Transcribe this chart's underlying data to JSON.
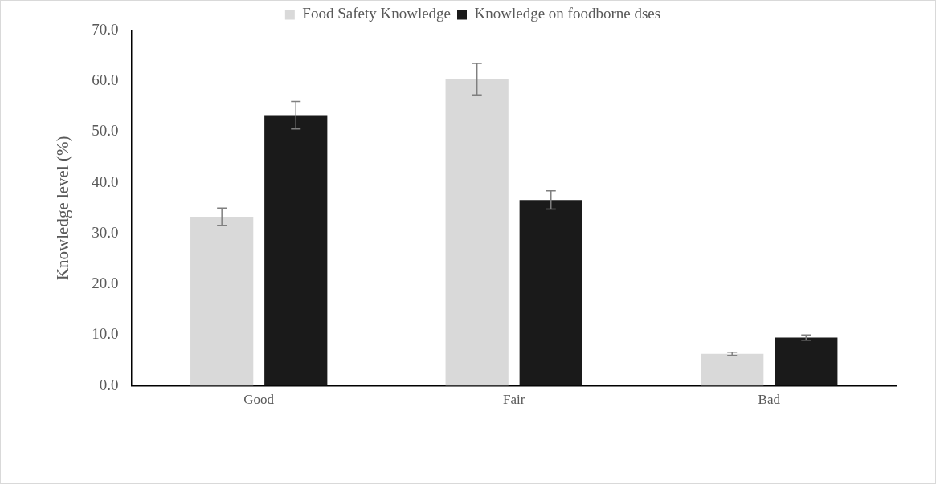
{
  "chart_data": {
    "type": "bar",
    "ylabel": "Knowledge level (%)",
    "categories": [
      "Good",
      "Fair",
      "Bad"
    ],
    "series": [
      {
        "name": "Food Safety Knowledge",
        "color": "#d9d9d9",
        "values": [
          33.3,
          60.4,
          6.3
        ],
        "errors": [
          1.7,
          3.1,
          0.3
        ]
      },
      {
        "name": "Knowledge on foodborne dses",
        "color": "#1a1a1a",
        "values": [
          53.3,
          36.6,
          9.5
        ],
        "errors": [
          2.7,
          1.8,
          0.5
        ]
      }
    ],
    "ylim": [
      0,
      70
    ],
    "yticks": [
      {
        "value": 0,
        "label": "0.0"
      },
      {
        "value": 10,
        "label": "10.0"
      },
      {
        "value": 20,
        "label": "20.0"
      },
      {
        "value": 30,
        "label": "30.0"
      },
      {
        "value": 40,
        "label": "40.0"
      },
      {
        "value": 50,
        "label": "50.0"
      },
      {
        "value": 60,
        "label": "60.0"
      },
      {
        "value": 70,
        "label": "70.0"
      }
    ],
    "grid": false,
    "legend": "top"
  }
}
